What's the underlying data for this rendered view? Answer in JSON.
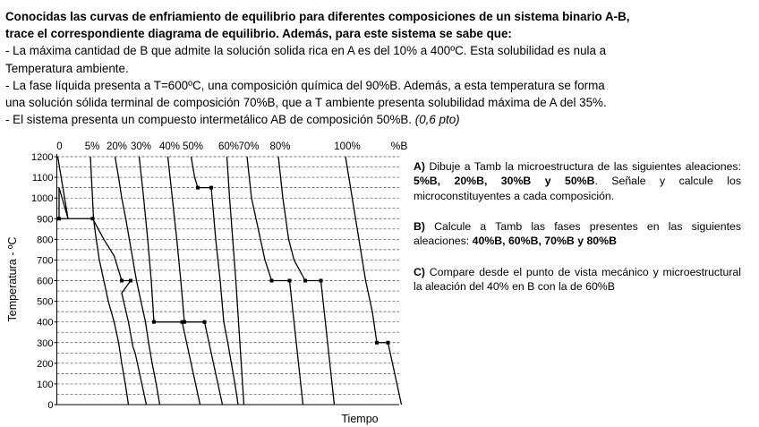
{
  "intro": {
    "l1a": "Conocidas las curvas de enfriamiento de equilibrio para diferentes composiciones de un sistema binario ",
    "l1b": "A-B",
    "l1c": ",",
    "l2a": "trace el correspondiente diagrama de equilibrio",
    "l2b": ". Además, para este sistema  se sabe que:",
    "l3": "- La máxima cantidad de B que admite la solución solida rica en A es del 10% a 400ºC. Esta solubilidad es nula a",
    "l4": "Temperatura ambiente.",
    "l5": "- La fase líquida presenta a T=600ºC, una composición química del 90%B. Además, a esta temperatura se forma",
    "l6": "una solución sólida terminal de composición 70%B, que a T ambiente presenta solubilidad máxima de A del 35%.",
    "l7a": "- El sistema presenta un compuesto intermetálico AB de composición 50%B. ",
    "l7b": "(0,6 pto)"
  },
  "questions": {
    "a_label": "A)",
    "a_text1": " Dibuje a Tamb la microestructura de las siguientes aleaciones: ",
    "a_bold": "5%B, 20%B, 30%B y 50%B",
    "a_text2": ". Señale y calcule los microconstituyentes a cada composición.",
    "b_label": "B)",
    "b_text": " Calcule a Tamb las fases presentes en las siguientes aleaciones: ",
    "b_bold": "40%B, 60%B, 70%B y 80%B",
    "c_label": "C)",
    "c_text": " Compare desde el punto de vista mecánico y microestructural la aleación del 40% en B con la de 60%B"
  },
  "chart_data": {
    "type": "line",
    "ylabel": "Temperatura - ºC",
    "xlabel": "Tiempo",
    "ylim": [
      0,
      1200
    ],
    "y_ticks": [
      "0",
      "100",
      "200",
      "300",
      "400",
      "500",
      "600",
      "700",
      "800",
      "900",
      "1000",
      "1100",
      "1200"
    ],
    "gridlines_every": 50,
    "composition_unit": "%B",
    "series": [
      {
        "name": "0",
        "points": [
          [
            0.2,
            1200
          ],
          [
            2.5,
            900
          ],
          [
            0.5,
            1050
          ],
          [
            0.5,
            900
          ],
          [
            8.0,
            900
          ],
          [
            10.5,
            800
          ],
          [
            12.8,
            720
          ],
          [
            14.5,
            600
          ],
          [
            16.5,
            600
          ],
          [
            14.5,
            540
          ],
          [
            16,
            400
          ],
          [
            17,
            280
          ],
          [
            17.5,
            250
          ],
          [
            19,
            100
          ],
          [
            20,
            0
          ]
        ]
      },
      {
        "name": "5%",
        "points": [
          [
            7.5,
            1200
          ],
          [
            8.2,
            900
          ],
          [
            8.8,
            800
          ],
          [
            9.5,
            700
          ],
          [
            10.5,
            600
          ],
          [
            11.5,
            500
          ],
          [
            12.8,
            400
          ],
          [
            13.8,
            300
          ],
          [
            14.5,
            200
          ],
          [
            15.3,
            100
          ],
          [
            16,
            0
          ]
        ]
      },
      {
        "name": "20%",
        "points": [
          [
            13,
            1200
          ],
          [
            13.8,
            1100
          ],
          [
            14.5,
            1000
          ],
          [
            15.4,
            900
          ],
          [
            16.2,
            800
          ],
          [
            17,
            700
          ],
          [
            17.8,
            600
          ],
          [
            18.8,
            500
          ],
          [
            19.8,
            400
          ],
          [
            20.5,
            300
          ],
          [
            21.3,
            200
          ],
          [
            22.2,
            100
          ],
          [
            23,
            0
          ]
        ]
      },
      {
        "name": "30%",
        "points": [
          [
            18.4,
            1200
          ],
          [
            19.4,
            1000
          ],
          [
            20.3,
            800
          ],
          [
            21.1,
            600
          ],
          [
            21.7,
            400
          ],
          [
            28,
            400
          ],
          [
            29,
            300
          ],
          [
            30,
            200
          ],
          [
            31,
            100
          ],
          [
            32,
            0
          ]
        ]
      },
      {
        "name": "40%",
        "points": [
          [
            24.8,
            1200
          ],
          [
            25.8,
            1000
          ],
          [
            26.8,
            800
          ],
          [
            27.7,
            600
          ],
          [
            28.5,
            400
          ],
          [
            33,
            400
          ],
          [
            34,
            300
          ],
          [
            35,
            200
          ],
          [
            36,
            100
          ],
          [
            37,
            0
          ]
        ]
      },
      {
        "name": "50%",
        "points": [
          [
            30,
            1200
          ],
          [
            30.8,
            1100
          ],
          [
            31.5,
            1050
          ],
          [
            34.5,
            1050
          ],
          [
            35.5,
            800
          ],
          [
            36.5,
            600
          ],
          [
            37.3,
            400
          ],
          [
            38.2,
            300
          ],
          [
            39,
            200
          ],
          [
            39.8,
            100
          ],
          [
            40.5,
            0
          ]
        ]
      },
      {
        "name": "60%",
        "points": [
          [
            38,
            1200
          ],
          [
            38.6,
            1000
          ],
          [
            39.3,
            800
          ],
          [
            40,
            600
          ],
          [
            40.6,
            400
          ],
          [
            41.2,
            200
          ],
          [
            41.8,
            0
          ]
        ]
      },
      {
        "name": "70%",
        "points": [
          [
            42.5,
            1200
          ],
          [
            43.5,
            1000
          ],
          [
            44.5,
            900
          ],
          [
            46.5,
            700
          ],
          [
            48,
            600
          ],
          [
            52,
            600
          ],
          [
            53,
            400
          ],
          [
            54,
            200
          ],
          [
            55,
            0
          ]
        ]
      },
      {
        "name": "80%",
        "points": [
          [
            49.5,
            1200
          ],
          [
            50.5,
            1000
          ],
          [
            51.8,
            800
          ],
          [
            53,
            700
          ],
          [
            55.5,
            600
          ],
          [
            59,
            600
          ],
          [
            60,
            400
          ],
          [
            61,
            200
          ],
          [
            62,
            0
          ]
        ]
      },
      {
        "name": "100%",
        "points": [
          [
            64.5,
            1200
          ],
          [
            66,
            1000
          ],
          [
            67.5,
            800
          ],
          [
            69,
            600
          ],
          [
            70.5,
            450
          ],
          [
            71.5,
            300
          ],
          [
            74,
            300
          ],
          [
            75,
            200
          ],
          [
            76,
            100
          ],
          [
            77,
            0
          ]
        ]
      }
    ]
  }
}
